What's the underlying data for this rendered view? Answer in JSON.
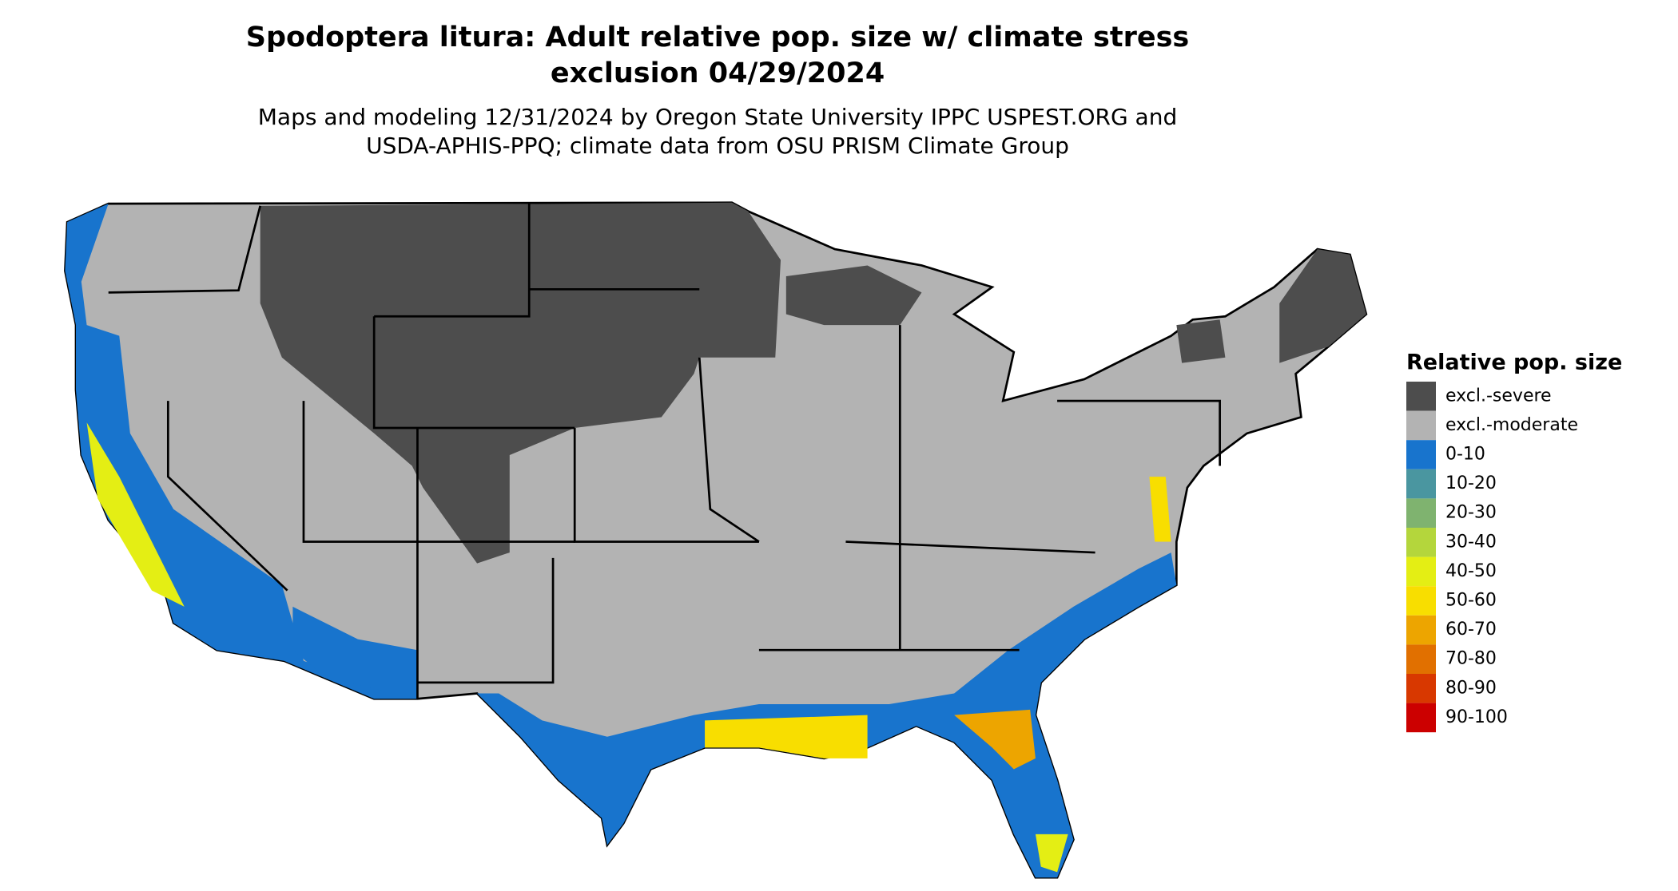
{
  "title": [
    "Spodoptera litura: Adult relative pop. size w/ climate stress",
    "exclusion 04/29/2024"
  ],
  "subtitle": [
    "Maps and modeling 12/31/2024 by Oregon State University IPPC USPEST.ORG and",
    "USDA-APHIS-PPQ; climate data from OSU PRISM Climate Group"
  ],
  "legend": {
    "title": "Relative pop. size",
    "items": [
      {
        "label": "excl.-severe",
        "color": "#4d4d4d"
      },
      {
        "label": "excl.-moderate",
        "color": "#b3b3b3"
      },
      {
        "label": "0-10",
        "color": "#1874cd"
      },
      {
        "label": "10-20",
        "color": "#4a96a0"
      },
      {
        "label": "20-30",
        "color": "#7fb36f"
      },
      {
        "label": "30-40",
        "color": "#b4d63c"
      },
      {
        "label": "40-50",
        "color": "#e4ee14"
      },
      {
        "label": "50-60",
        "color": "#f8de00"
      },
      {
        "label": "60-70",
        "color": "#eda500"
      },
      {
        "label": "70-80",
        "color": "#e17000"
      },
      {
        "label": "80-90",
        "color": "#d83800"
      },
      {
        "label": "90-100",
        "color": "#cc0000"
      }
    ]
  }
}
